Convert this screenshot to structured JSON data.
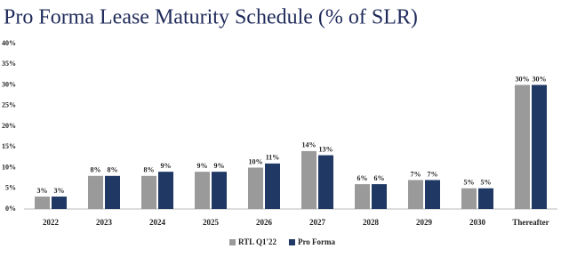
{
  "chart_data": {
    "type": "bar",
    "title": "Pro Forma Lease Maturity Schedule (% of SLR)",
    "categories": [
      "2022",
      "2023",
      "2024",
      "2025",
      "2026",
      "2027",
      "2028",
      "2029",
      "2030",
      "Thereafter"
    ],
    "series": [
      {
        "name": "RTL Q1'22",
        "color": "#9a9a9a",
        "values": [
          3,
          8,
          8,
          9,
          10,
          14,
          6,
          7,
          5,
          30
        ],
        "value_labels": [
          "3%",
          "8%",
          "8%",
          "9%",
          "10%",
          "14%",
          "6%",
          "7%",
          "5%",
          "30%"
        ]
      },
      {
        "name": "Pro Forma",
        "color": "#1f3864",
        "values": [
          3,
          8,
          9,
          9,
          11,
          13,
          6,
          7,
          5,
          30
        ],
        "value_labels": [
          "3%",
          "8%",
          "9%",
          "9%",
          "11%",
          "13%",
          "6%",
          "7%",
          "5%",
          "30%"
        ]
      }
    ],
    "ylim": [
      0,
      40
    ],
    "yticks": [
      {
        "value": 0,
        "label": "0%"
      },
      {
        "value": 5,
        "label": "5%"
      },
      {
        "value": 10,
        "label": "10%"
      },
      {
        "value": 15,
        "label": "15%"
      },
      {
        "value": 20,
        "label": "20%"
      },
      {
        "value": 25,
        "label": "25%"
      },
      {
        "value": 30,
        "label": "30%"
      },
      {
        "value": 35,
        "label": "35%"
      },
      {
        "value": 40,
        "label": "40%"
      }
    ],
    "grid": false,
    "legend": "bottom"
  }
}
